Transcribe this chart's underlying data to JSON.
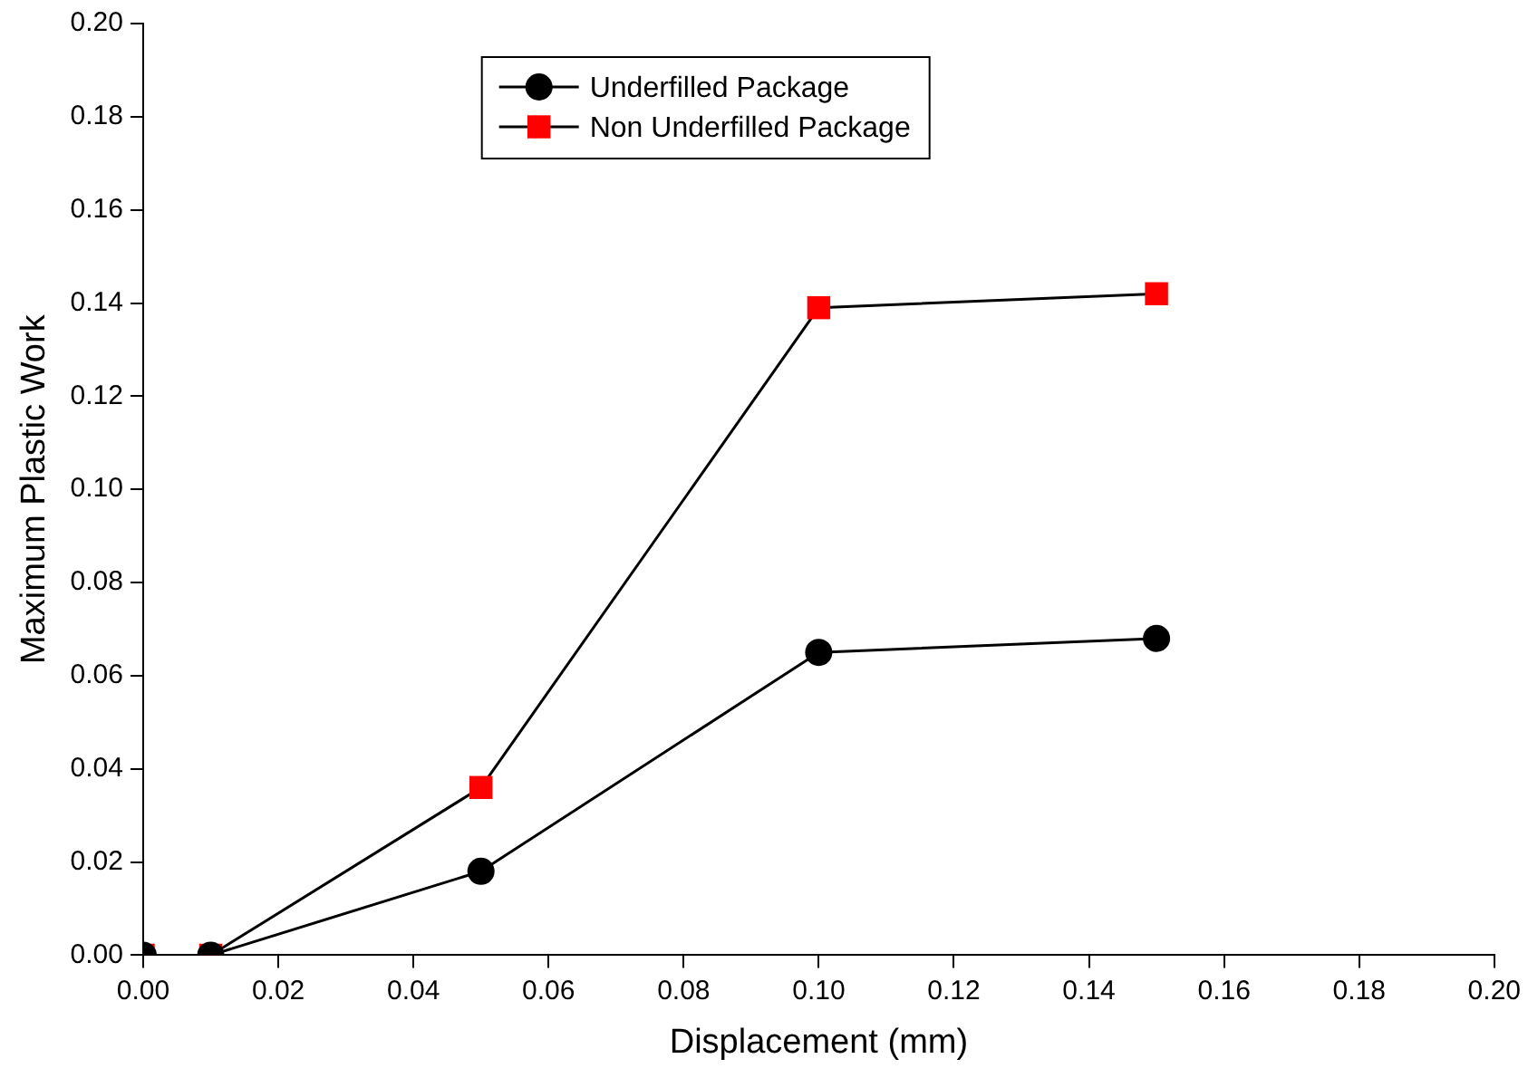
{
  "chart_data": {
    "type": "line",
    "xlabel": "Displacement (mm)",
    "ylabel": "Maximum Plastic Work",
    "x": [
      0,
      0.01,
      0.05,
      0.1,
      0.15
    ],
    "series": [
      {
        "name": "Underfilled Package",
        "color": "#000000",
        "marker": "circle",
        "values": [
          0,
          0,
          0.018,
          0.065,
          0.068
        ]
      },
      {
        "name": "Non Underfilled Package",
        "color": "#ff0000",
        "marker": "square",
        "values": [
          0,
          0,
          0.036,
          0.139,
          0.142
        ]
      }
    ],
    "xlim": [
      0,
      0.2
    ],
    "xticks": [
      {
        "value": 0,
        "label": "0.00"
      },
      {
        "value": 0.02,
        "label": "0.02"
      },
      {
        "value": 0.04,
        "label": "0.04"
      },
      {
        "value": 0.06,
        "label": "0.06"
      },
      {
        "value": 0.08,
        "label": "0.08"
      },
      {
        "value": 0.1,
        "label": "0.10"
      },
      {
        "value": 0.12,
        "label": "0.12"
      },
      {
        "value": 0.14,
        "label": "0.14"
      },
      {
        "value": 0.16,
        "label": "0.16"
      },
      {
        "value": 0.18,
        "label": "0.18"
      },
      {
        "value": 0.2,
        "label": "0.20"
      }
    ],
    "ylim": [
      0,
      0.2
    ],
    "yticks": [
      {
        "value": 0,
        "label": "0.00"
      },
      {
        "value": 0.02,
        "label": "0.02"
      },
      {
        "value": 0.04,
        "label": "0.04"
      },
      {
        "value": 0.06,
        "label": "0.06"
      },
      {
        "value": 0.08,
        "label": "0.08"
      },
      {
        "value": 0.1,
        "label": "0.10"
      },
      {
        "value": 0.12,
        "label": "0.12"
      },
      {
        "value": 0.14,
        "label": "0.14"
      },
      {
        "value": 0.16,
        "label": "0.16"
      },
      {
        "value": 0.18,
        "label": "0.18"
      },
      {
        "value": 0.2,
        "label": "0.20"
      }
    ],
    "grid": false,
    "legend": "top",
    "line_style": "solid"
  }
}
